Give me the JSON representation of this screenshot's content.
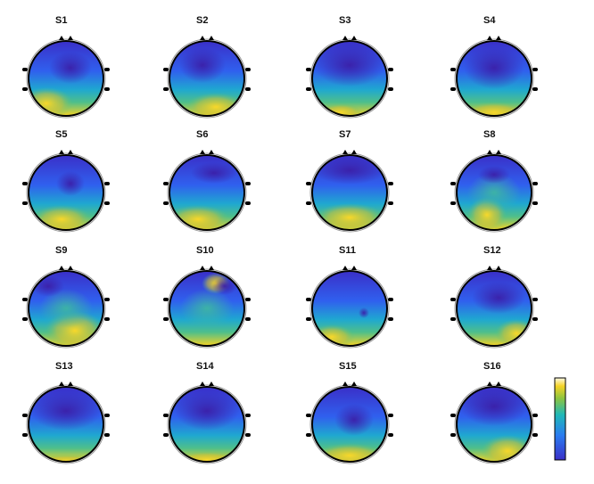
{
  "panels": [
    {
      "label": "S1"
    },
    {
      "label": "S2"
    },
    {
      "label": "S3"
    },
    {
      "label": "S4"
    },
    {
      "label": "S5"
    },
    {
      "label": "S6"
    },
    {
      "label": "S7"
    },
    {
      "label": "S8"
    },
    {
      "label": "S9"
    },
    {
      "label": "S10"
    },
    {
      "label": "S11"
    },
    {
      "label": "S12"
    },
    {
      "label": "S13"
    },
    {
      "label": "S14"
    },
    {
      "label": "S15"
    },
    {
      "label": "S16"
    }
  ]
}
